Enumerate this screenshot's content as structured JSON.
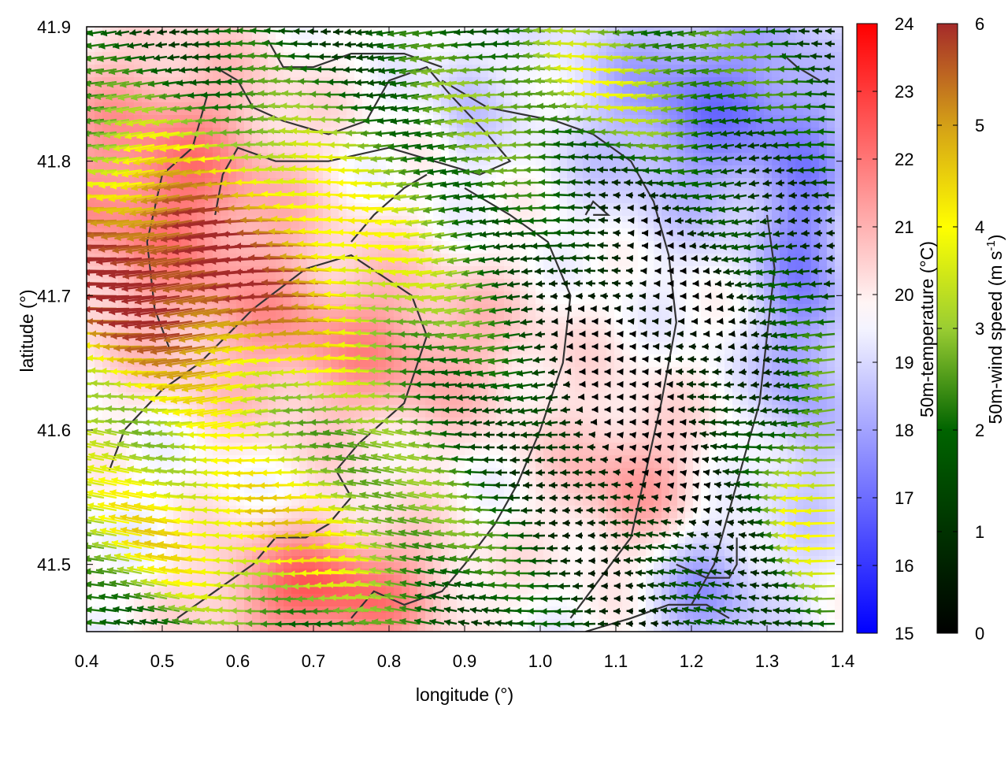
{
  "chart_data": {
    "type": "heatmap",
    "title": "",
    "xlabel": "longitude (°)",
    "ylabel": "latitude (°)",
    "xlim": [
      0.4,
      1.4
    ],
    "ylim": [
      41.45,
      41.9
    ],
    "xticks": [
      0.4,
      0.5,
      0.6,
      0.7,
      0.8,
      0.9,
      1.0,
      1.1,
      1.2,
      1.3,
      1.4
    ],
    "xtick_labels": [
      "0.4",
      "0.5",
      "0.6",
      "0.7",
      "0.8",
      "0.9",
      "1.0",
      "1.1",
      "1.2",
      "1.3",
      "1.4"
    ],
    "yticks": [
      41.5,
      41.6,
      41.7,
      41.8,
      41.9
    ],
    "ytick_labels": [
      "41.5",
      "41.6",
      "41.7",
      "41.8",
      "41.9"
    ],
    "grid": false,
    "temperature": {
      "label": "50m-temperature (°C)",
      "range": [
        15,
        24
      ],
      "ticks": [
        15,
        16,
        17,
        18,
        19,
        20,
        21,
        22,
        23,
        24
      ],
      "tick_labels": [
        "15",
        "16",
        "17",
        "18",
        "19",
        "20",
        "21",
        "22",
        "23",
        "24"
      ],
      "colormap": [
        "#0000ff",
        "#ffffff",
        "#ff0000"
      ],
      "colormap_midpoint": 19.7
    },
    "wind_speed": {
      "label": "50m-wind speed (m s",
      "label_exponent": "-1",
      "label_close": ")",
      "range": [
        0,
        6
      ],
      "ticks": [
        0,
        1,
        2,
        3,
        4,
        5,
        6
      ],
      "tick_labels": [
        "0",
        "1",
        "2",
        "3",
        "4",
        "5",
        "6"
      ],
      "colormap": [
        "#000000",
        "#006400",
        "#9acd32",
        "#ffff00",
        "#d4a017",
        "#a52a2a"
      ],
      "colormap_stops": [
        0,
        2,
        3,
        4,
        5,
        6
      ]
    },
    "contours_lonlat": [
      [
        [
          0.43,
          41.57
        ],
        [
          0.45,
          41.6
        ],
        [
          0.5,
          41.63
        ],
        [
          0.55,
          41.65
        ],
        [
          0.62,
          41.69
        ],
        [
          0.69,
          41.72
        ],
        [
          0.75,
          41.73
        ],
        [
          0.83,
          41.7
        ],
        [
          0.85,
          41.67
        ],
        [
          0.82,
          41.62
        ],
        [
          0.76,
          41.59
        ],
        [
          0.73,
          41.57
        ],
        [
          0.75,
          41.55
        ],
        [
          0.72,
          41.53
        ],
        [
          0.69,
          41.52
        ],
        [
          0.65,
          41.52
        ],
        [
          0.62,
          41.5
        ],
        [
          0.57,
          41.48
        ],
        [
          0.52,
          41.46
        ]
      ],
      [
        [
          0.51,
          41.66
        ],
        [
          0.49,
          41.69
        ],
        [
          0.48,
          41.74
        ],
        [
          0.5,
          41.79
        ],
        [
          0.54,
          41.81
        ],
        [
          0.56,
          41.85
        ]
      ],
      [
        [
          0.57,
          41.76
        ],
        [
          0.58,
          41.79
        ],
        [
          0.6,
          41.81
        ],
        [
          0.65,
          41.8
        ],
        [
          0.72,
          41.8
        ],
        [
          0.8,
          41.81
        ],
        [
          0.86,
          41.8
        ],
        [
          0.92,
          41.79
        ],
        [
          0.96,
          41.8
        ],
        [
          0.93,
          41.82
        ],
        [
          0.88,
          41.85
        ],
        [
          0.85,
          41.87
        ],
        [
          0.8,
          41.86
        ],
        [
          0.77,
          41.83
        ],
        [
          0.72,
          41.82
        ],
        [
          0.66,
          41.83
        ],
        [
          0.62,
          41.84
        ],
        [
          0.6,
          41.86
        ],
        [
          0.57,
          41.87
        ]
      ],
      [
        [
          0.64,
          41.89
        ],
        [
          0.66,
          41.87
        ],
        [
          0.7,
          41.87
        ],
        [
          0.75,
          41.88
        ],
        [
          0.82,
          41.88
        ],
        [
          0.87,
          41.87
        ]
      ],
      [
        [
          0.87,
          41.86
        ],
        [
          0.93,
          41.84
        ],
        [
          1.02,
          41.83
        ],
        [
          1.07,
          41.82
        ],
        [
          1.12,
          41.8
        ],
        [
          1.15,
          41.77
        ],
        [
          1.17,
          41.73
        ],
        [
          1.18,
          41.68
        ],
        [
          1.16,
          41.62
        ],
        [
          1.14,
          41.57
        ],
        [
          1.12,
          41.52
        ],
        [
          1.08,
          41.49
        ],
        [
          1.04,
          41.46
        ]
      ],
      [
        [
          0.9,
          41.78
        ],
        [
          0.96,
          41.76
        ],
        [
          1.01,
          41.74
        ],
        [
          1.04,
          41.7
        ],
        [
          1.03,
          41.65
        ],
        [
          1.0,
          41.6
        ],
        [
          0.97,
          41.56
        ],
        [
          0.94,
          41.53
        ],
        [
          0.9,
          41.5
        ],
        [
          0.87,
          41.48
        ],
        [
          0.82,
          41.47
        ],
        [
          0.78,
          41.48
        ],
        [
          0.75,
          41.46
        ]
      ],
      [
        [
          1.3,
          41.76
        ],
        [
          1.31,
          41.72
        ],
        [
          1.3,
          41.67
        ],
        [
          1.29,
          41.62
        ],
        [
          1.27,
          41.58
        ],
        [
          1.25,
          41.54
        ],
        [
          1.23,
          41.5
        ],
        [
          1.2,
          41.47
        ]
      ],
      [
        [
          1.06,
          41.45
        ],
        [
          1.12,
          41.46
        ],
        [
          1.17,
          41.47
        ],
        [
          1.22,
          41.47
        ],
        [
          1.25,
          41.46
        ]
      ],
      [
        [
          1.18,
          41.5
        ],
        [
          1.22,
          41.49
        ],
        [
          1.25,
          41.49
        ],
        [
          1.26,
          41.5
        ],
        [
          1.26,
          41.52
        ]
      ],
      [
        [
          0.75,
          41.74
        ],
        [
          0.78,
          41.76
        ],
        [
          0.82,
          41.78
        ],
        [
          0.85,
          41.79
        ]
      ],
      [
        [
          1.32,
          41.88
        ],
        [
          1.34,
          41.87
        ],
        [
          1.37,
          41.86
        ]
      ],
      [
        [
          1.07,
          41.76
        ],
        [
          1.09,
          41.76
        ],
        [
          1.07,
          41.77
        ],
        [
          1.06,
          41.76
        ]
      ]
    ]
  }
}
